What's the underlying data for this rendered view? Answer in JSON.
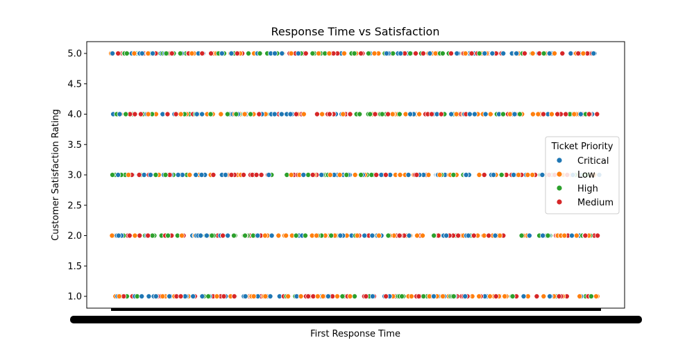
{
  "chart_data": {
    "type": "scatter",
    "title": "Response Time vs Satisfaction",
    "xlabel": "First Response Time",
    "ylabel": "Customer Satisfaction Rating",
    "ylim": [
      0.8,
      5.2
    ],
    "y_ticks": [
      "1.0",
      "1.5",
      "2.0",
      "2.5",
      "3.0",
      "3.5",
      "4.0",
      "4.5",
      "5.0"
    ],
    "grid": false,
    "legend": {
      "title": "Ticket Priority",
      "placement": "center-right",
      "entries": [
        "Critical",
        "Low",
        "High",
        "Medium"
      ]
    },
    "colors": {
      "Critical": "#1f77b4",
      "Low": "#ff7f0e",
      "High": "#2ca02c",
      "Medium": "#d62728"
    },
    "y_levels": [
      1,
      2,
      3,
      4,
      5
    ],
    "x_note": "x axis is categorical (timestamps); tick labels overlap and are illegible"
  }
}
